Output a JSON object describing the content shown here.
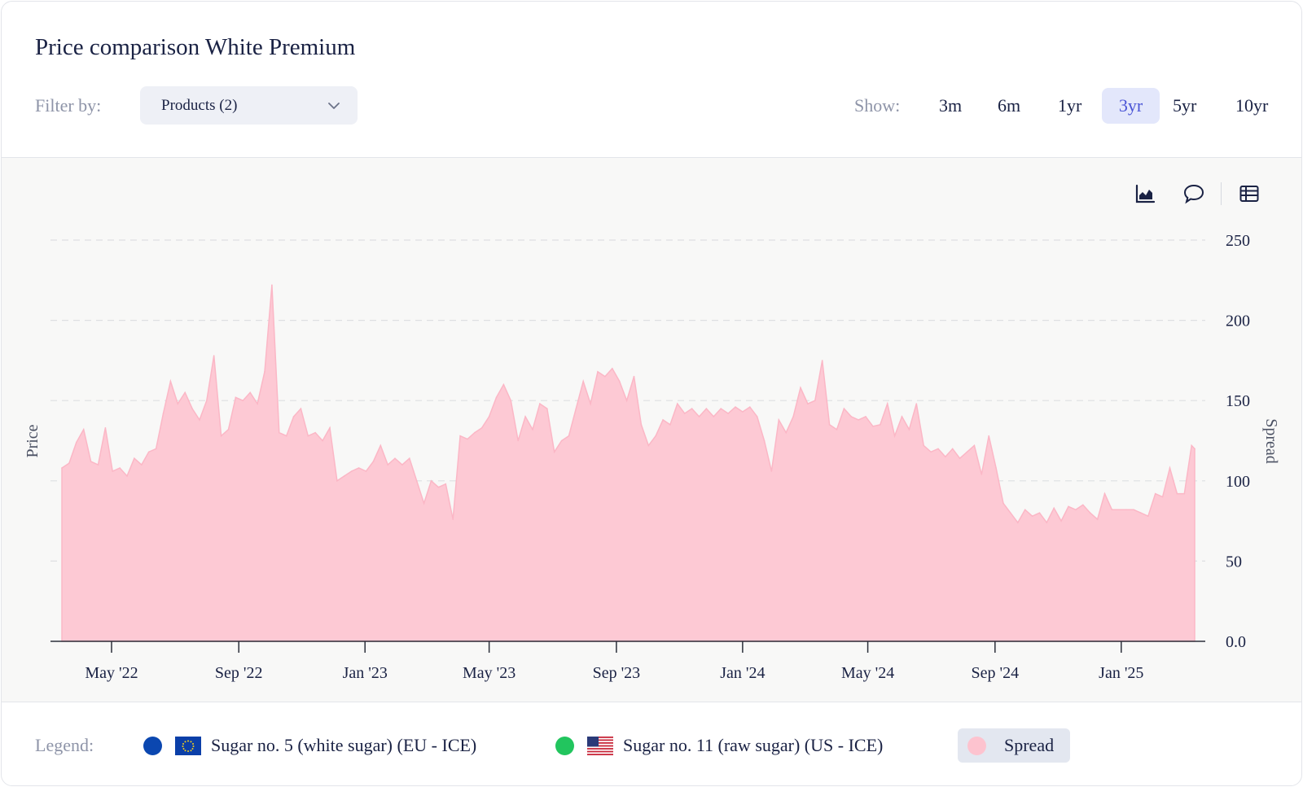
{
  "title": "Price comparison White Premium",
  "filter": {
    "label": "Filter by:",
    "value": "Products (2)"
  },
  "show": {
    "label": "Show:",
    "options": [
      "3m",
      "6m",
      "1yr",
      "3yr",
      "5yr",
      "10yr"
    ],
    "active": "3yr"
  },
  "toolbar": {
    "icons": [
      "area-chart-icon",
      "comment-icon",
      "table-icon"
    ]
  },
  "legend": {
    "label": "Legend:",
    "items": [
      {
        "name": "Sugar no. 5 (white sugar) (EU - ICE)",
        "color": "#0b47b0",
        "flag": "eu-flag-icon"
      },
      {
        "name": "Sugar no. 11 (raw sugar) (US - ICE)",
        "color": "#22c55e",
        "flag": "us-flag-icon"
      },
      {
        "name": "Spread",
        "color": "#fdc3cf"
      }
    ]
  },
  "chart_data": {
    "type": "area",
    "ylabel_left": "Price",
    "ylabel_right": "Spread",
    "ylim": [
      0,
      250
    ],
    "yticks": [
      "0.0",
      "50",
      "100",
      "150",
      "200",
      "250"
    ],
    "xticks": [
      "May '22",
      "Sep '22",
      "Jan '23",
      "May '23",
      "Sep '23",
      "Jan '24",
      "May '24",
      "Sep '24",
      "Jan '25"
    ],
    "fill_color": "#fdc9d4",
    "line_color": "#fbb7c6",
    "grid": "dashed-horizontal",
    "series": [
      {
        "name": "Spread",
        "values": [
          [
            "2022-03-14",
            108
          ],
          [
            "2022-03-21",
            111
          ],
          [
            "2022-03-28",
            124
          ],
          [
            "2022-04-04",
            132
          ],
          [
            "2022-04-11",
            112
          ],
          [
            "2022-04-18",
            110
          ],
          [
            "2022-04-25",
            133
          ],
          [
            "2022-05-02",
            106
          ],
          [
            "2022-05-09",
            108
          ],
          [
            "2022-05-16",
            103
          ],
          [
            "2022-05-23",
            114
          ],
          [
            "2022-05-30",
            110
          ],
          [
            "2022-06-06",
            118
          ],
          [
            "2022-06-13",
            120
          ],
          [
            "2022-06-20",
            142
          ],
          [
            "2022-06-27",
            162
          ],
          [
            "2022-07-04",
            148
          ],
          [
            "2022-07-11",
            155
          ],
          [
            "2022-07-18",
            145
          ],
          [
            "2022-07-25",
            138
          ],
          [
            "2022-08-01",
            150
          ],
          [
            "2022-08-08",
            178
          ],
          [
            "2022-08-15",
            128
          ],
          [
            "2022-08-22",
            132
          ],
          [
            "2022-08-29",
            152
          ],
          [
            "2022-09-05",
            150
          ],
          [
            "2022-09-12",
            155
          ],
          [
            "2022-09-19",
            148
          ],
          [
            "2022-09-26",
            168
          ],
          [
            "2022-10-03",
            222
          ],
          [
            "2022-10-10",
            130
          ],
          [
            "2022-10-17",
            128
          ],
          [
            "2022-10-24",
            140
          ],
          [
            "2022-10-31",
            145
          ],
          [
            "2022-11-07",
            128
          ],
          [
            "2022-11-14",
            130
          ],
          [
            "2022-11-21",
            125
          ],
          [
            "2022-11-28",
            133
          ],
          [
            "2022-12-05",
            100
          ],
          [
            "2022-12-12",
            103
          ],
          [
            "2022-12-19",
            106
          ],
          [
            "2022-12-26",
            108
          ],
          [
            "2023-01-02",
            106
          ],
          [
            "2023-01-09",
            112
          ],
          [
            "2023-01-16",
            122
          ],
          [
            "2023-01-23",
            110
          ],
          [
            "2023-01-30",
            114
          ],
          [
            "2023-02-06",
            110
          ],
          [
            "2023-02-13",
            114
          ],
          [
            "2023-02-20",
            100
          ],
          [
            "2023-02-27",
            86
          ],
          [
            "2023-03-06",
            100
          ],
          [
            "2023-03-13",
            96
          ],
          [
            "2023-03-20",
            98
          ],
          [
            "2023-03-27",
            76
          ],
          [
            "2023-04-03",
            128
          ],
          [
            "2023-04-10",
            126
          ],
          [
            "2023-04-17",
            130
          ],
          [
            "2023-04-24",
            133
          ],
          [
            "2023-05-01",
            140
          ],
          [
            "2023-05-08",
            152
          ],
          [
            "2023-05-15",
            160
          ],
          [
            "2023-05-22",
            150
          ],
          [
            "2023-05-29",
            125
          ],
          [
            "2023-06-05",
            140
          ],
          [
            "2023-06-12",
            132
          ],
          [
            "2023-06-19",
            148
          ],
          [
            "2023-06-26",
            145
          ],
          [
            "2023-07-03",
            118
          ],
          [
            "2023-07-10",
            125
          ],
          [
            "2023-07-17",
            128
          ],
          [
            "2023-07-24",
            145
          ],
          [
            "2023-07-31",
            162
          ],
          [
            "2023-08-07",
            148
          ],
          [
            "2023-08-14",
            168
          ],
          [
            "2023-08-21",
            165
          ],
          [
            "2023-08-28",
            170
          ],
          [
            "2023-09-04",
            162
          ],
          [
            "2023-09-11",
            150
          ],
          [
            "2023-09-18",
            165
          ],
          [
            "2023-09-25",
            135
          ],
          [
            "2023-10-02",
            122
          ],
          [
            "2023-10-09",
            128
          ],
          [
            "2023-10-16",
            138
          ],
          [
            "2023-10-23",
            135
          ],
          [
            "2023-10-30",
            148
          ],
          [
            "2023-11-06",
            142
          ],
          [
            "2023-11-13",
            145
          ],
          [
            "2023-11-20",
            140
          ],
          [
            "2023-11-27",
            145
          ],
          [
            "2023-12-04",
            140
          ],
          [
            "2023-12-11",
            145
          ],
          [
            "2023-12-18",
            142
          ],
          [
            "2023-12-25",
            146
          ],
          [
            "2024-01-01",
            143
          ],
          [
            "2024-01-08",
            146
          ],
          [
            "2024-01-15",
            140
          ],
          [
            "2024-01-22",
            125
          ],
          [
            "2024-01-29",
            106
          ],
          [
            "2024-02-05",
            138
          ],
          [
            "2024-02-12",
            130
          ],
          [
            "2024-02-19",
            140
          ],
          [
            "2024-02-26",
            158
          ],
          [
            "2024-03-04",
            148
          ],
          [
            "2024-03-11",
            150
          ],
          [
            "2024-03-18",
            175
          ],
          [
            "2024-03-25",
            135
          ],
          [
            "2024-04-01",
            132
          ],
          [
            "2024-04-08",
            145
          ],
          [
            "2024-04-15",
            140
          ],
          [
            "2024-04-22",
            138
          ],
          [
            "2024-04-29",
            140
          ],
          [
            "2024-05-06",
            134
          ],
          [
            "2024-05-13",
            135
          ],
          [
            "2024-05-20",
            148
          ],
          [
            "2024-05-27",
            128
          ],
          [
            "2024-06-03",
            140
          ],
          [
            "2024-06-10",
            132
          ],
          [
            "2024-06-17",
            148
          ],
          [
            "2024-06-24",
            122
          ],
          [
            "2024-07-01",
            118
          ],
          [
            "2024-07-08",
            120
          ],
          [
            "2024-07-15",
            115
          ],
          [
            "2024-07-22",
            120
          ],
          [
            "2024-07-29",
            114
          ],
          [
            "2024-08-05",
            118
          ],
          [
            "2024-08-12",
            122
          ],
          [
            "2024-08-19",
            104
          ],
          [
            "2024-08-26",
            128
          ],
          [
            "2024-09-02",
            108
          ],
          [
            "2024-09-09",
            86
          ],
          [
            "2024-09-16",
            80
          ],
          [
            "2024-09-23",
            74
          ],
          [
            "2024-09-30",
            82
          ],
          [
            "2024-10-07",
            78
          ],
          [
            "2024-10-14",
            80
          ],
          [
            "2024-10-21",
            74
          ],
          [
            "2024-10-28",
            83
          ],
          [
            "2024-11-04",
            75
          ],
          [
            "2024-11-11",
            84
          ],
          [
            "2024-11-18",
            82
          ],
          [
            "2024-11-25",
            85
          ],
          [
            "2024-12-02",
            80
          ],
          [
            "2024-12-09",
            76
          ],
          [
            "2024-12-16",
            92
          ],
          [
            "2024-12-23",
            82
          ],
          [
            "2025-01-06",
            82
          ],
          [
            "2025-01-13",
            82
          ],
          [
            "2025-01-20",
            80
          ],
          [
            "2025-01-27",
            78
          ],
          [
            "2025-02-03",
            92
          ],
          [
            "2025-02-10",
            90
          ],
          [
            "2025-02-17",
            108
          ],
          [
            "2025-02-24",
            92
          ],
          [
            "2025-03-03",
            92
          ],
          [
            "2025-03-10",
            122
          ],
          [
            "2025-03-13",
            120
          ]
        ]
      }
    ]
  }
}
